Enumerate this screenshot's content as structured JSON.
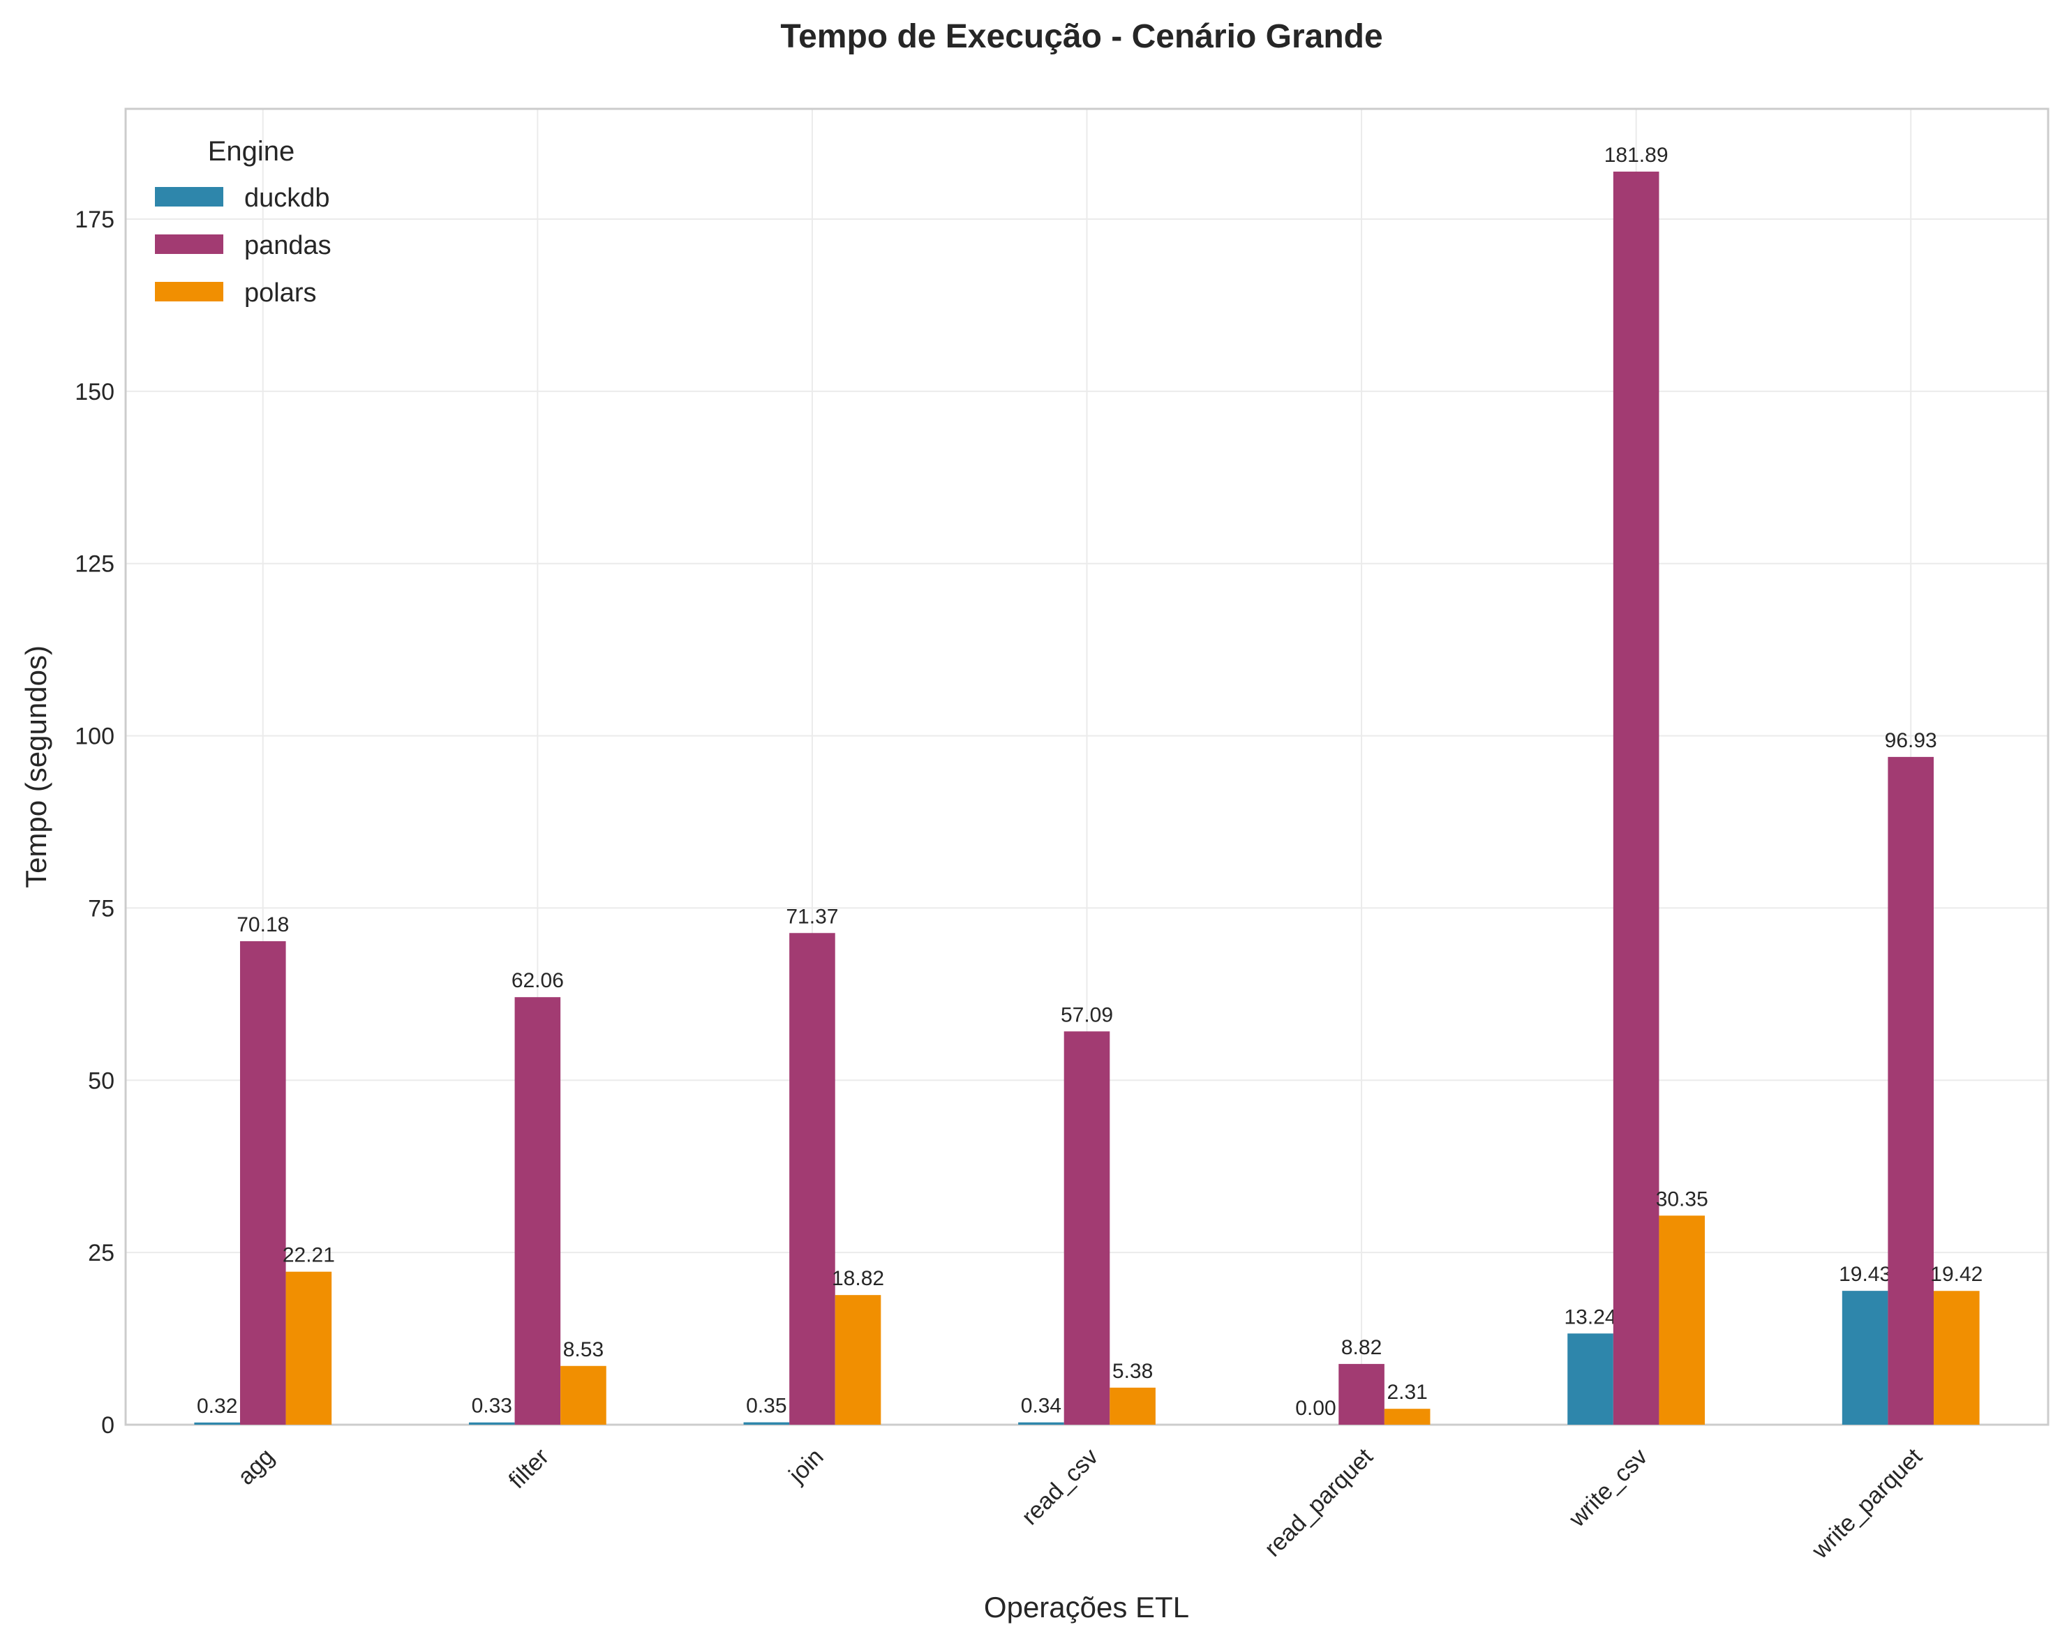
{
  "chart_data": {
    "type": "bar",
    "title": "Tempo de Execução - Cenário Grande",
    "xlabel": "Operações ETL",
    "ylabel": "Tempo (segundos)",
    "ylim": [
      0,
      191
    ],
    "yticks": [
      0,
      25,
      50,
      75,
      100,
      125,
      150,
      175
    ],
    "grid": true,
    "legend_title": "Engine",
    "legend_position": "top-left",
    "categories": [
      "agg",
      "filter",
      "join",
      "read_csv",
      "read_parquet",
      "write_csv",
      "write_parquet"
    ],
    "series": [
      {
        "name": "duckdb",
        "color": "#2E86AB",
        "values": [
          0.32,
          0.33,
          0.35,
          0.34,
          0.0,
          13.24,
          19.43
        ],
        "labels": [
          "0.32",
          "0.33",
          "0.35",
          "0.34",
          "0.00",
          "13.24",
          "19.43"
        ]
      },
      {
        "name": "pandas",
        "color": "#A23B72",
        "values": [
          70.18,
          62.06,
          71.37,
          57.09,
          8.82,
          181.89,
          96.93
        ],
        "labels": [
          "70.18",
          "62.06",
          "71.37",
          "57.09",
          "8.82",
          "181.89",
          "96.93"
        ]
      },
      {
        "name": "polars",
        "color": "#F18F01",
        "values": [
          22.21,
          8.53,
          18.82,
          5.38,
          2.31,
          30.35,
          19.42
        ],
        "labels": [
          "22.21",
          "8.53",
          "18.82",
          "5.38",
          "2.31",
          "30.35",
          "19.42"
        ]
      }
    ]
  }
}
